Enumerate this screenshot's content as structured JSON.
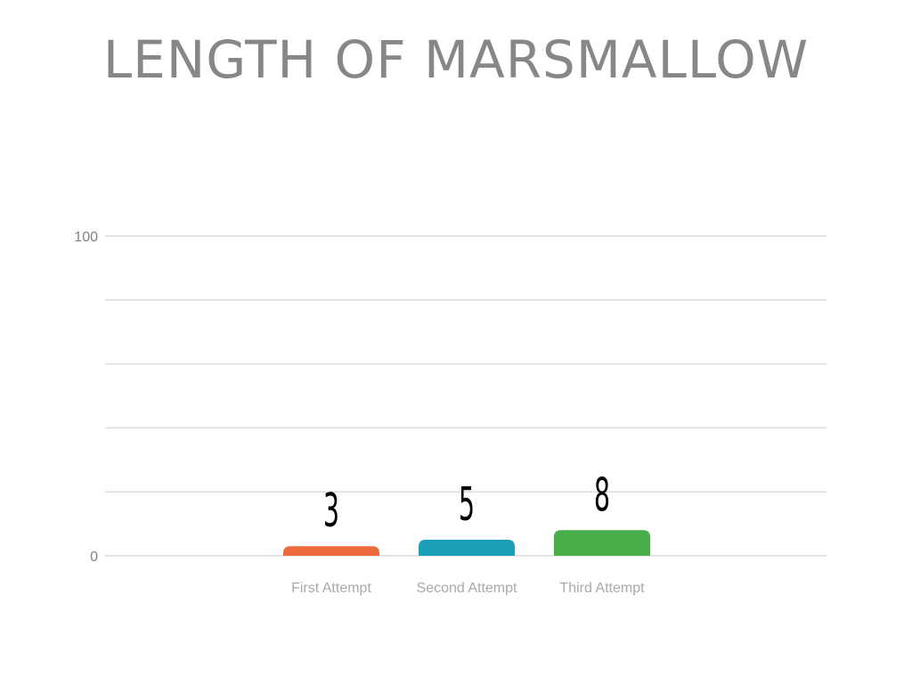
{
  "chart_data": {
    "type": "bar",
    "title": "LENGTH OF MARSMALLOW",
    "xlabel": "",
    "ylabel": "",
    "categories": [
      "First Attempt",
      "Second Attempt",
      "Third Attempt"
    ],
    "values": [
      3,
      5,
      8
    ],
    "data_labels": [
      "3",
      "5",
      "8"
    ],
    "y_tick_labels": [
      "0",
      "100"
    ],
    "ylim": [
      0,
      100
    ],
    "gridlines": [
      0,
      20,
      40,
      60,
      80,
      100
    ],
    "grid": true,
    "legend": "none",
    "colors": [
      "#ee6a3c",
      "#1b9fb8",
      "#46ad48"
    ]
  }
}
